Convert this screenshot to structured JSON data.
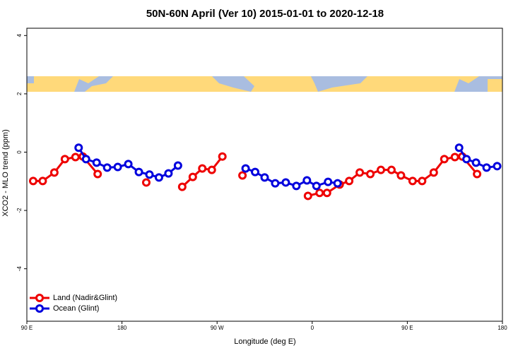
{
  "chart_data": {
    "type": "line",
    "title": "50N-60N April (Ver 10)   2015-01-01 to 2020-12-18",
    "x_label": "Longitude (deg E)",
    "y_label": "XCO2 - MLO trend (ppm)",
    "xlim": [
      90,
      540
    ],
    "ylim": [
      -5.8,
      4.25
    ],
    "xticks": [
      {
        "value": 90,
        "label": "90 E"
      },
      180,
      {
        "value": 270,
        "label": "90 W"
      },
      {
        "value": 360,
        "label": "0"
      },
      {
        "value": 450,
        "label": "90 E"
      },
      {
        "value": 540,
        "label": "180"
      }
    ],
    "yticks": [
      -4,
      -2,
      0,
      2,
      4
    ],
    "grid": false,
    "legend": "bottom-left",
    "series": [
      {
        "name": "Land (Nadir&Glint)",
        "color": "#ee0000",
        "x": [
          96,
          105,
          116,
          126,
          136,
          143,
          157,
          180,
          203,
          220,
          237,
          247,
          256,
          265,
          275,
          285,
          294,
          320,
          356,
          367,
          374,
          386,
          395,
          405,
          415,
          425,
          435,
          444,
          455,
          464,
          475,
          485,
          495,
          502,
          516
        ],
        "values": [
          -0.99,
          -0.99,
          -0.7,
          -0.24,
          -0.17,
          -0.15,
          -0.75,
          null,
          -1.04,
          null,
          -1.19,
          -0.85,
          -0.56,
          -0.61,
          -0.15,
          null,
          -0.8,
          null,
          -1.5,
          -1.4,
          -1.4,
          -1.11,
          -0.99,
          -0.7,
          -0.75,
          -0.61,
          -0.61,
          -0.8,
          -0.99,
          -0.99,
          -0.7,
          -0.24,
          -0.17,
          -0.15,
          -0.75
        ]
      },
      {
        "name": "Ocean (Glint)",
        "color": "#0000dd",
        "x": [
          139,
          146,
          156,
          166,
          176,
          186,
          196,
          206,
          215,
          224,
          233,
          265,
          297,
          306,
          315,
          325,
          335,
          345,
          355,
          364,
          375,
          384,
          440,
          499,
          506,
          515,
          525,
          535
        ],
        "values": [
          0.15,
          -0.24,
          -0.36,
          -0.53,
          -0.51,
          -0.41,
          -0.68,
          -0.77,
          -0.87,
          -0.73,
          -0.46,
          null,
          -0.56,
          -0.68,
          -0.87,
          -1.07,
          -1.04,
          -1.16,
          -0.97,
          -1.16,
          -1.02,
          -1.07,
          null,
          0.15,
          -0.24,
          -0.36,
          -0.53,
          -0.48
        ]
      }
    ]
  }
}
